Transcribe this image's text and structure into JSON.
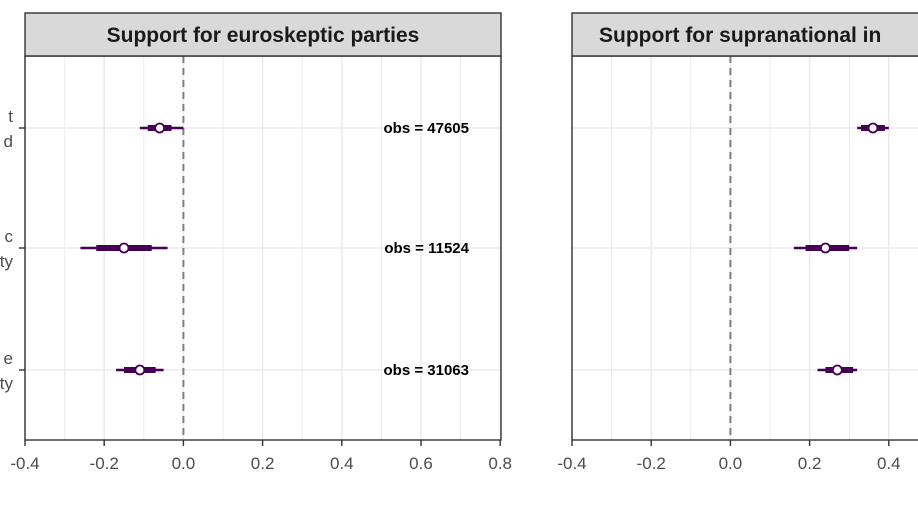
{
  "chart_data": [
    {
      "type": "forest",
      "title": "Support for euroskeptic parties",
      "xlim": [
        -0.4,
        0.8
      ],
      "xticks": [
        -0.4,
        -0.2,
        0.0,
        0.2,
        0.4,
        0.6,
        0.8
      ],
      "tick_labels": [
        "-0.4",
        "-0.2",
        "0.0",
        "0.2",
        "0.4",
        "0.6",
        "0.8"
      ],
      "reference_line": 0.0,
      "grid": true,
      "rows": [
        {
          "label_fragment": [
            "t",
            "d"
          ],
          "estimate": -0.06,
          "inner": [
            -0.09,
            -0.03
          ],
          "outer": [
            -0.11,
            0.0
          ],
          "obs": "obs = 47605"
        },
        {
          "label_fragment": [
            "c",
            "ty"
          ],
          "estimate": -0.15,
          "inner": [
            -0.22,
            -0.08
          ],
          "outer": [
            -0.26,
            -0.04
          ],
          "obs": "obs = 11524"
        },
        {
          "label_fragment": [
            "e",
            "ty"
          ],
          "estimate": -0.11,
          "inner": [
            -0.15,
            -0.07
          ],
          "outer": [
            -0.17,
            -0.05
          ],
          "obs": "obs = 31063"
        }
      ]
    },
    {
      "type": "forest",
      "title": "Support for supranational in",
      "xlim": [
        -0.4,
        0.8
      ],
      "xticks": [
        -0.4,
        -0.2,
        0.0,
        0.2,
        0.4
      ],
      "tick_labels": [
        "-0.4",
        "-0.2",
        "0.0",
        "0.2",
        "0.4"
      ],
      "reference_line": 0.0,
      "grid": true,
      "rows": [
        {
          "estimate": 0.36,
          "inner": [
            0.33,
            0.39
          ],
          "outer": [
            0.32,
            0.4
          ]
        },
        {
          "estimate": 0.24,
          "inner": [
            0.19,
            0.3
          ],
          "outer": [
            0.16,
            0.32
          ]
        },
        {
          "estimate": 0.27,
          "inner": [
            0.24,
            0.31
          ],
          "outer": [
            0.22,
            0.32
          ]
        }
      ]
    }
  ],
  "colors": {
    "estimate": "#440154",
    "point_fill": "#ffffff",
    "strip_fill": "#d9d9d9",
    "grid": "#ebebeb",
    "reference_line": "#7f7f7f",
    "frame": "#333333"
  }
}
